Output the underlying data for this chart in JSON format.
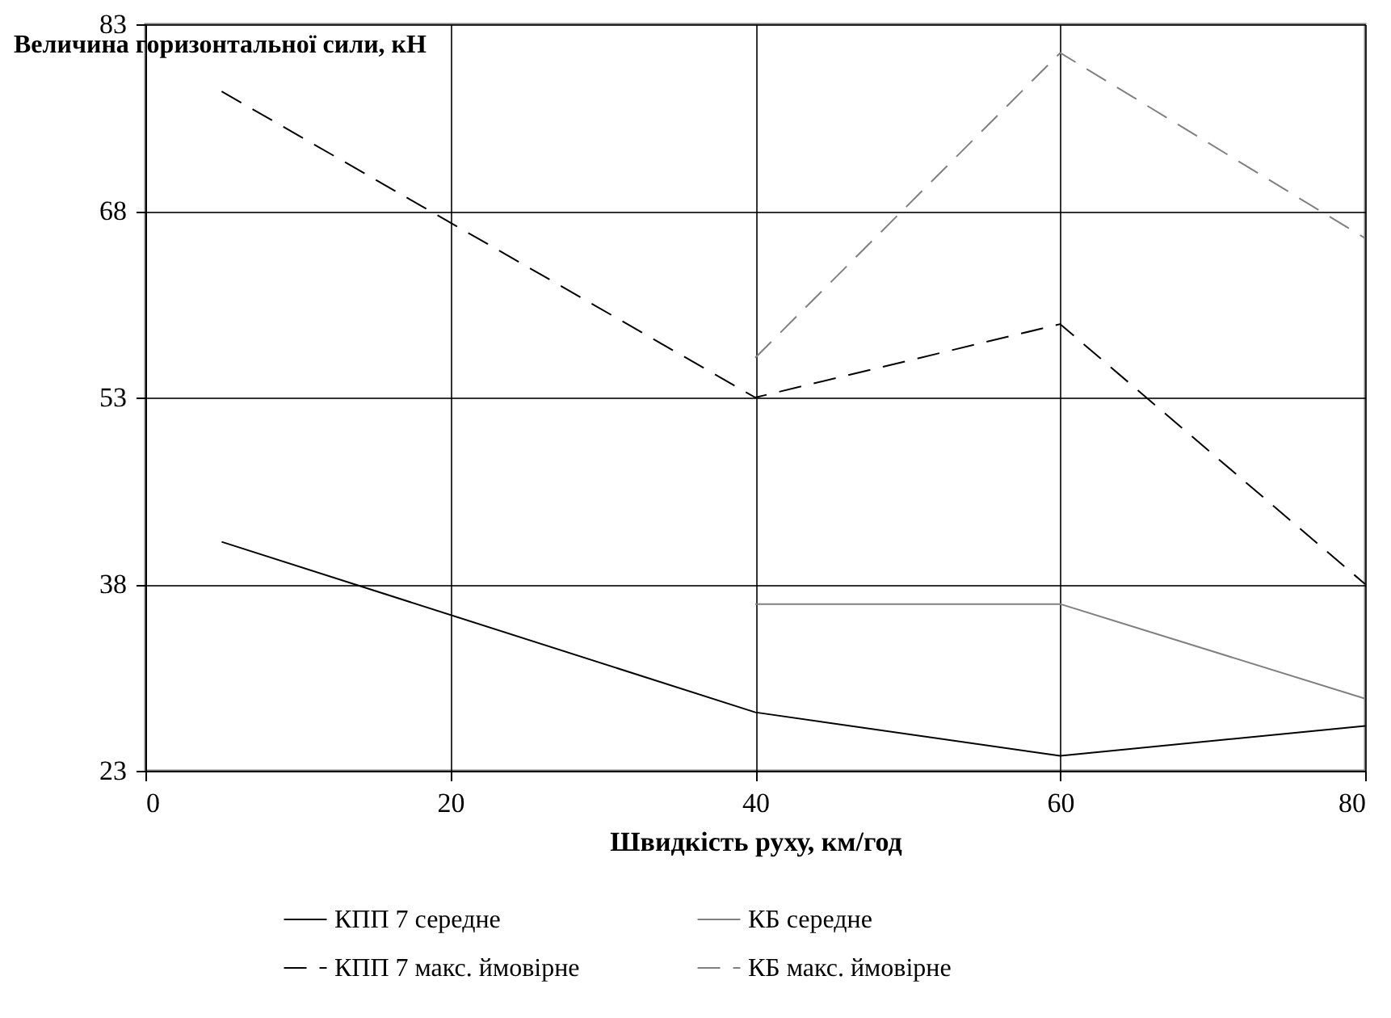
{
  "chart_data": {
    "type": "line",
    "xlabel": "Швидкість руху, км/год",
    "ylabel": "Величина горизонтальної сили, кН",
    "xlim": [
      0,
      80
    ],
    "xticks": [
      0,
      20,
      40,
      60,
      80
    ],
    "ylim": [
      23,
      83
    ],
    "yticks": [
      23,
      38,
      53,
      68,
      83
    ],
    "grid": true,
    "legend": "bottom",
    "series": [
      {
        "name": "КПП 7 середне",
        "color": "#000000",
        "line_style": "solid",
        "x": [
          5,
          40,
          60,
          80
        ],
        "values": [
          41.4,
          27.7,
          24.2,
          26.6
        ]
      },
      {
        "name": "КБ середне",
        "color": "#808080",
        "line_style": "solid",
        "x": [
          40,
          60,
          80
        ],
        "values": [
          36.4,
          36.4,
          28.8
        ]
      },
      {
        "name": "КПП 7 макс. ймовірне",
        "color": "#000000",
        "line_style": "dashed",
        "x": [
          5,
          40,
          60,
          80
        ],
        "values": [
          77.6,
          53,
          58.9,
          38
        ]
      },
      {
        "name": "КБ макс. ймовірне",
        "color": "#808080",
        "line_style": "dashed",
        "x": [
          40,
          60,
          80
        ],
        "values": [
          56.2,
          80.7,
          65.8
        ]
      }
    ]
  }
}
